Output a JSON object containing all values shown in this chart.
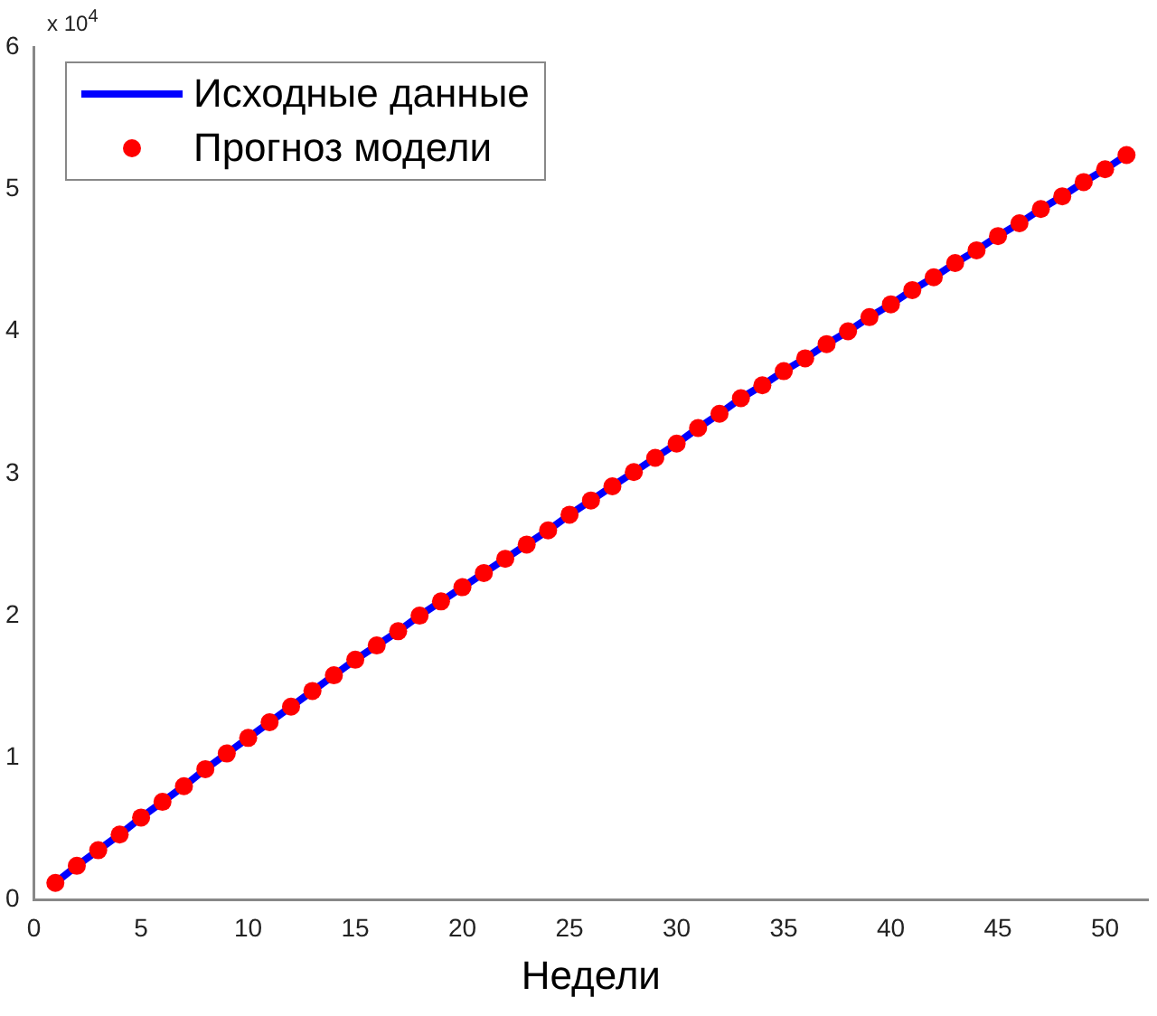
{
  "chart_data": {
    "type": "line",
    "xlabel": "Недели",
    "annotations": [
      "x 10$^{4}$"
    ],
    "x": [
      1,
      2,
      3,
      4,
      5,
      6,
      7,
      8,
      9,
      10,
      11,
      12,
      13,
      14,
      15,
      16,
      17,
      18,
      19,
      20,
      21,
      22,
      23,
      24,
      25,
      26,
      27,
      28,
      29,
      30,
      31,
      32,
      33,
      34,
      35,
      36,
      37,
      38,
      39,
      40,
      41,
      42,
      43,
      44,
      45,
      46,
      47,
      48,
      49,
      50,
      51
    ],
    "series": [
      {
        "name": "Исходные данные",
        "color": "#0000ff",
        "marker": "none",
        "line_style": "solid",
        "values": [
          0.12,
          0.24,
          0.35,
          0.46,
          0.58,
          0.69,
          0.8,
          0.92,
          1.03,
          1.14,
          1.25,
          1.36,
          1.47,
          1.58,
          1.69,
          1.79,
          1.89,
          2.0,
          2.1,
          2.2,
          2.3,
          2.4,
          2.5,
          2.6,
          2.71,
          2.81,
          2.91,
          3.01,
          3.11,
          3.21,
          3.32,
          3.42,
          3.53,
          3.62,
          3.72,
          3.81,
          3.91,
          4.0,
          4.1,
          4.19,
          4.29,
          4.38,
          4.48,
          4.57,
          4.67,
          4.76,
          4.86,
          4.95,
          5.05,
          5.14,
          5.24
        ]
      },
      {
        "name": "Прогноз модели",
        "type": "scatter",
        "color": "#ff0000",
        "marker": "circle",
        "values": [
          0.12,
          0.24,
          0.35,
          0.46,
          0.58,
          0.69,
          0.8,
          0.92,
          1.03,
          1.14,
          1.25,
          1.36,
          1.47,
          1.58,
          1.69,
          1.79,
          1.89,
          2.0,
          2.1,
          2.2,
          2.3,
          2.4,
          2.5,
          2.6,
          2.71,
          2.81,
          2.91,
          3.01,
          3.11,
          3.21,
          3.32,
          3.42,
          3.53,
          3.62,
          3.72,
          3.81,
          3.91,
          4.0,
          4.1,
          4.19,
          4.29,
          4.38,
          4.48,
          4.57,
          4.67,
          4.76,
          4.86,
          4.95,
          5.05,
          5.14,
          5.24
        ]
      }
    ],
    "xlim": [
      0,
      52
    ],
    "xticks": [
      0,
      5,
      10,
      15,
      20,
      25,
      30,
      35,
      40,
      45,
      50
    ],
    "ylim": [
      0,
      6
    ],
    "yticks": [
      0,
      1,
      2,
      3,
      4,
      5,
      6
    ],
    "grid": false,
    "legend": "top left"
  }
}
